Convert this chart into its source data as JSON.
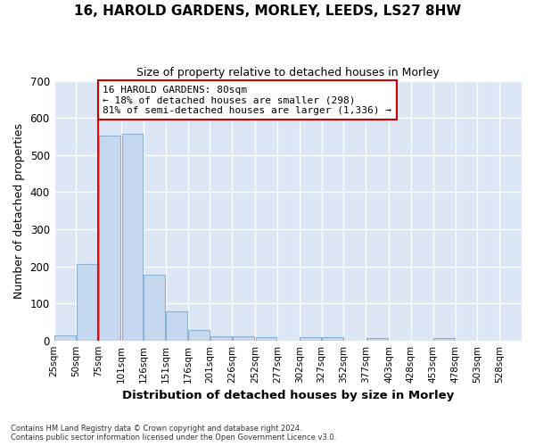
{
  "title1": "16, HAROLD GARDENS, MORLEY, LEEDS, LS27 8HW",
  "title2": "Size of property relative to detached houses in Morley",
  "xlabel": "Distribution of detached houses by size in Morley",
  "ylabel": "Number of detached properties",
  "footer1": "Contains HM Land Registry data © Crown copyright and database right 2024.",
  "footer2": "Contains public sector information licensed under the Open Government Licence v3.0.",
  "bar_left_edges": [
    25,
    50,
    75,
    101,
    126,
    151,
    176,
    201,
    226,
    252,
    277,
    302,
    327,
    352,
    377,
    403,
    428,
    453,
    478,
    503
  ],
  "bar_widths": [
    25,
    25,
    25,
    25,
    25,
    25,
    25,
    25,
    25,
    25,
    25,
    25,
    25,
    25,
    25,
    25,
    25,
    25,
    25,
    25
  ],
  "bar_heights": [
    13,
    205,
    553,
    558,
    178,
    78,
    29,
    12,
    11,
    8,
    0,
    9,
    9,
    0,
    7,
    0,
    0,
    6,
    0,
    0
  ],
  "bar_color": "#c5d8ef",
  "bar_edge_color": "#8ab0d4",
  "tick_labels": [
    "25sqm",
    "50sqm",
    "75sqm",
    "101sqm",
    "126sqm",
    "151sqm",
    "176sqm",
    "201sqm",
    "226sqm",
    "252sqm",
    "277sqm",
    "302sqm",
    "327sqm",
    "352sqm",
    "377sqm",
    "403sqm",
    "428sqm",
    "453sqm",
    "478sqm",
    "503sqm",
    "528sqm"
  ],
  "ylim": [
    0,
    700
  ],
  "yticks": [
    0,
    100,
    200,
    300,
    400,
    500,
    600,
    700
  ],
  "red_line_x": 75,
  "annotation_text": "16 HAROLD GARDENS: 80sqm\n← 18% of detached houses are smaller (298)\n81% of semi-detached houses are larger (1,336) →",
  "annotation_box_color": "#ffffff",
  "annotation_border_color": "#cc0000",
  "fig_bg_color": "#ffffff",
  "plot_bg_color": "#dce6f5",
  "grid_color": "#ffffff"
}
